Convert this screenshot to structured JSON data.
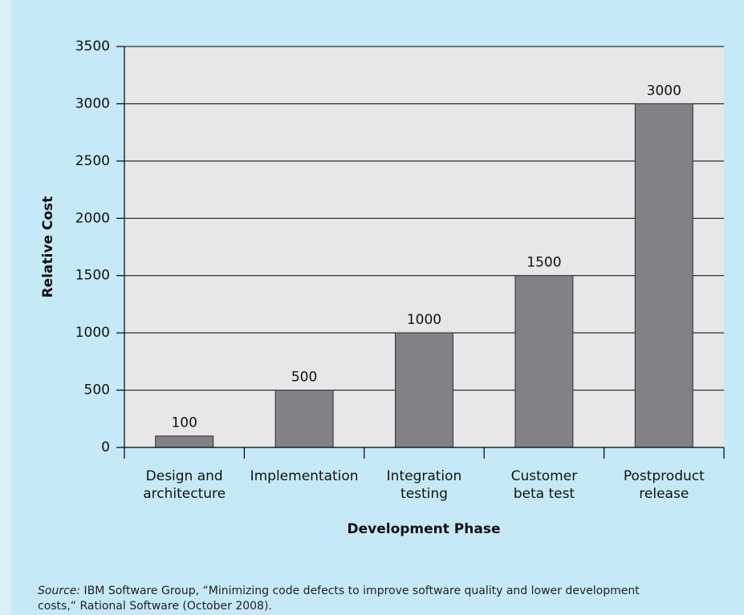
{
  "chart_data": {
    "type": "bar",
    "categories": [
      [
        "Design and",
        "architecture"
      ],
      [
        "Implementation"
      ],
      [
        "Integration",
        "testing"
      ],
      [
        "Customer",
        "beta test"
      ],
      [
        "Postproduct",
        "release"
      ]
    ],
    "values": [
      100,
      500,
      1000,
      1500,
      3000
    ],
    "color": "#818285",
    "xlabel": "Development Phase",
    "ylabel": "Relative Cost",
    "ylim": [
      0,
      3500
    ],
    "yticks": [
      0,
      500,
      1000,
      1500,
      2000,
      2500,
      3000,
      3500
    ],
    "grid": true,
    "source_label": "Source:",
    "source": [
      " IBM Software Group, “Minimizing code defects to improve software quality and lower development",
      "costs,“ Rational Software (October 2008)."
    ]
  }
}
